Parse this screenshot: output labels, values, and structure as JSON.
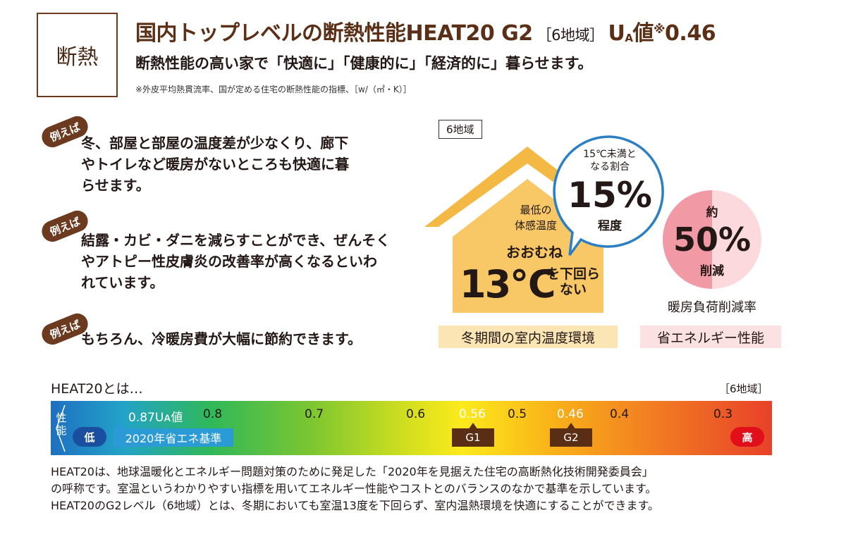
{
  "header": {
    "tag": "断熱",
    "title_main": "国内トップレベルの断熱性能HEAT20 G2",
    "title_region": "［6地域］",
    "title_ua_u": "U",
    "title_ua_a": "A",
    "title_ua_tail": "値",
    "title_note_mark": "※",
    "title_value": "0.46",
    "subtitle": "断熱性能の高い家で「快適に」「健康的に」「経済的に」暮らせます。",
    "footnote": "※外皮平均熱貫流率、国が定める住宅の断熱性能の指標、［w/（㎡・K）］"
  },
  "examples": {
    "badge": "例えば",
    "items": [
      {
        "line1": "冬、部屋と部屋の温度差が少なくり、廊下",
        "line2": "やトイレなど暖房がないところも快適に暮",
        "line3": "らせます。"
      },
      {
        "line1": "結露・カビ・ダニを減らすことができ、ぜんそく",
        "line2": "やアトピー性皮膚炎の改善率が高くなるといわ",
        "line3": "れています。"
      },
      {
        "line1": "もちろん、冷暖房費が大幅に節約できます。"
      }
    ]
  },
  "house": {
    "region_label": "6地域",
    "min_temp_line1": "最低の",
    "min_temp_line2": "体感温度",
    "approx": "おおむね",
    "temp_value": "13℃",
    "below_line1": "を下回ら",
    "below_line2": "ない",
    "caption": "冬期間の室内温度環境"
  },
  "bubble": {
    "line1": "15℃未満と",
    "line2": "なる割合",
    "value": "15%",
    "suffix": "程度"
  },
  "reduction": {
    "approx": "約",
    "value": "50%",
    "suffix": "削減",
    "label": "暖房負荷削減率",
    "caption": "省エネルギー性能"
  },
  "scale": {
    "title": "HEAT20とは…",
    "region": "［6地域］",
    "side_label_top": "性",
    "side_label_bottom": "能",
    "low": "低",
    "high": "高",
    "ua_label": "0.87Uᴀ値",
    "standard": "2020年省エネ基準",
    "ticks": [
      "0.8",
      "0.7",
      "0.6",
      "0.56",
      "0.5",
      "0.46",
      "0.4",
      "0.3"
    ],
    "g1": "G1",
    "g2": "G2",
    "colors": {
      "low": "#1a4fa0",
      "high": "#e10f1a",
      "standard": "#2b9bd6",
      "grade": "#5a2e14"
    }
  },
  "description": {
    "line1": "HEAT20は、地球温暖化とエネルギー問題対策のために発足した「2020年を見据えた住宅の高断熱化技術開発委員会」",
    "line2": "の呼称です。室温というわかりやすい指標を用いてエネルギー性能やコストとのバランスのなかで基準を示しています。",
    "line3": "HEAT20のG2レベル（6地域）とは、冬期においても室温13度を下回らず、室内温熱環境を快適にすることができます。"
  }
}
